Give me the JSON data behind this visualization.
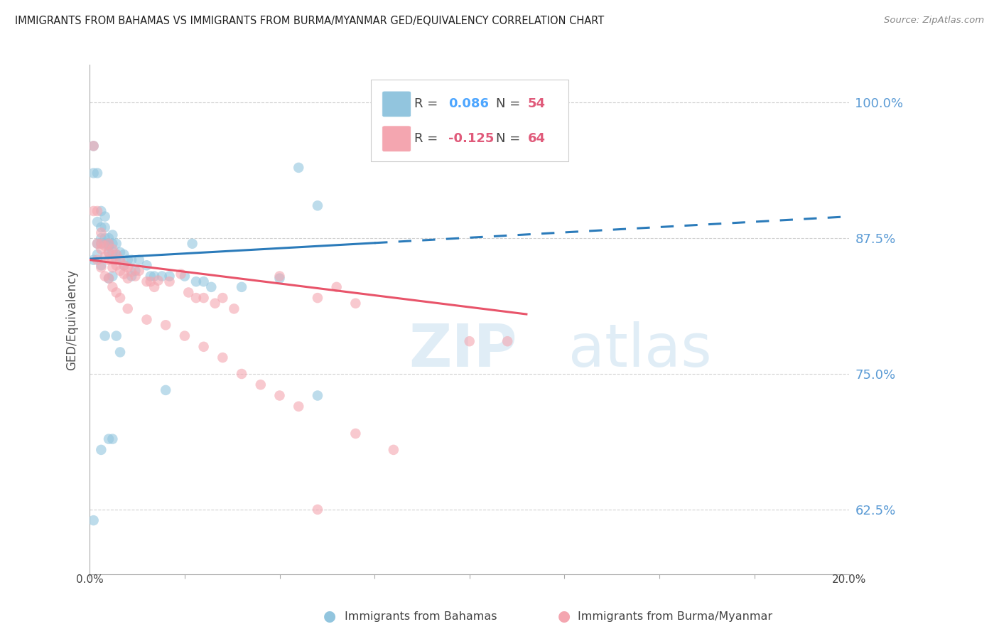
{
  "title": "IMMIGRANTS FROM BAHAMAS VS IMMIGRANTS FROM BURMA/MYANMAR GED/EQUIVALENCY CORRELATION CHART",
  "source": "Source: ZipAtlas.com",
  "ylabel": "GED/Equivalency",
  "ytick_labels": [
    "100.0%",
    "87.5%",
    "75.0%",
    "62.5%"
  ],
  "ytick_values": [
    1.0,
    0.875,
    0.75,
    0.625
  ],
  "xlim": [
    0.0,
    0.2
  ],
  "ylim": [
    0.565,
    1.035
  ],
  "color_bahamas": "#92c5de",
  "color_burma": "#f4a6b0",
  "color_trendline_blue": "#2b7bba",
  "color_trendline_pink": "#e8546a",
  "color_yticks": "#5b9bd5",
  "color_xticks": "#444444",
  "watermark_zip": "ZIP",
  "watermark_atlas": "atlas",
  "bahamas_x": [
    0.001,
    0.001,
    0.002,
    0.002,
    0.002,
    0.003,
    0.003,
    0.003,
    0.003,
    0.004,
    0.004,
    0.004,
    0.004,
    0.005,
    0.005,
    0.005,
    0.005,
    0.006,
    0.006,
    0.006,
    0.007,
    0.007,
    0.007,
    0.008,
    0.008,
    0.009,
    0.009,
    0.01,
    0.011,
    0.011,
    0.012,
    0.013,
    0.015,
    0.016,
    0.017,
    0.019,
    0.021,
    0.025,
    0.028,
    0.03,
    0.032,
    0.04,
    0.05,
    0.055,
    0.06,
    0.001,
    0.002,
    0.003,
    0.004,
    0.005,
    0.006,
    0.007,
    0.008,
    0.027
  ],
  "bahamas_y": [
    0.935,
    0.96,
    0.935,
    0.89,
    0.87,
    0.9,
    0.885,
    0.875,
    0.87,
    0.895,
    0.885,
    0.875,
    0.87,
    0.875,
    0.87,
    0.868,
    0.862,
    0.878,
    0.87,
    0.862,
    0.87,
    0.86,
    0.855,
    0.862,
    0.855,
    0.86,
    0.85,
    0.855,
    0.855,
    0.84,
    0.845,
    0.855,
    0.85,
    0.84,
    0.84,
    0.84,
    0.84,
    0.84,
    0.835,
    0.835,
    0.83,
    0.83,
    0.838,
    0.94,
    0.905,
    0.855,
    0.86,
    0.85,
    0.785,
    0.838,
    0.84,
    0.785,
    0.77,
    0.87
  ],
  "bahamas_x2": [
    0.001,
    0.003,
    0.005,
    0.006,
    0.02,
    0.06
  ],
  "bahamas_y2": [
    0.615,
    0.68,
    0.69,
    0.69,
    0.735,
    0.73
  ],
  "burma_x": [
    0.001,
    0.001,
    0.002,
    0.002,
    0.003,
    0.003,
    0.003,
    0.004,
    0.004,
    0.005,
    0.005,
    0.005,
    0.006,
    0.006,
    0.006,
    0.007,
    0.007,
    0.008,
    0.008,
    0.009,
    0.009,
    0.01,
    0.01,
    0.011,
    0.012,
    0.013,
    0.015,
    0.016,
    0.017,
    0.018,
    0.021,
    0.024,
    0.026,
    0.028,
    0.03,
    0.033,
    0.035,
    0.038,
    0.05,
    0.06,
    0.065,
    0.07,
    0.1,
    0.11,
    0.002,
    0.003,
    0.004,
    0.005,
    0.006,
    0.007,
    0.008,
    0.01,
    0.015,
    0.02,
    0.025,
    0.03,
    0.035,
    0.04,
    0.045,
    0.05,
    0.055,
    0.06,
    0.07,
    0.08
  ],
  "burma_y": [
    0.96,
    0.9,
    0.9,
    0.87,
    0.88,
    0.87,
    0.865,
    0.868,
    0.858,
    0.87,
    0.862,
    0.855,
    0.865,
    0.855,
    0.848,
    0.86,
    0.85,
    0.855,
    0.845,
    0.85,
    0.842,
    0.848,
    0.838,
    0.844,
    0.84,
    0.845,
    0.835,
    0.835,
    0.83,
    0.836,
    0.835,
    0.842,
    0.825,
    0.82,
    0.82,
    0.815,
    0.82,
    0.81,
    0.84,
    0.82,
    0.83,
    0.815,
    0.78,
    0.78,
    0.855,
    0.848,
    0.84,
    0.838,
    0.83,
    0.825,
    0.82,
    0.81,
    0.8,
    0.795,
    0.785,
    0.775,
    0.765,
    0.75,
    0.74,
    0.73,
    0.72,
    0.625,
    0.695,
    0.68
  ]
}
